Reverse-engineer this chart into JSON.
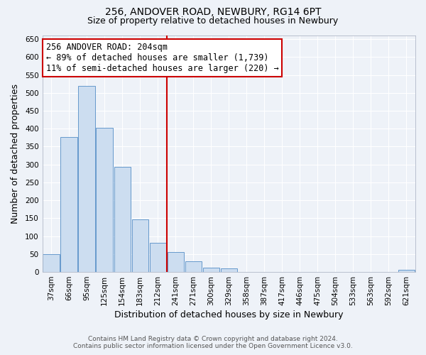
{
  "title": "256, ANDOVER ROAD, NEWBURY, RG14 6PT",
  "subtitle": "Size of property relative to detached houses in Newbury",
  "xlabel": "Distribution of detached houses by size in Newbury",
  "ylabel": "Number of detached properties",
  "bar_labels": [
    "37sqm",
    "66sqm",
    "95sqm",
    "125sqm",
    "154sqm",
    "183sqm",
    "212sqm",
    "241sqm",
    "271sqm",
    "300sqm",
    "329sqm",
    "358sqm",
    "387sqm",
    "417sqm",
    "446sqm",
    "475sqm",
    "504sqm",
    "533sqm",
    "563sqm",
    "592sqm",
    "621sqm"
  ],
  "bar_values": [
    50,
    377,
    519,
    403,
    293,
    146,
    82,
    56,
    30,
    12,
    10,
    0,
    0,
    0,
    0,
    0,
    0,
    0,
    0,
    0,
    7
  ],
  "bar_color": "#ccddf0",
  "bar_edge_color": "#6699cc",
  "vline_x_idx": 6,
  "vline_color": "#cc0000",
  "annotation_line1": "256 ANDOVER ROAD: 204sqm",
  "annotation_line2": "← 89% of detached houses are smaller (1,739)",
  "annotation_line3": "11% of semi-detached houses are larger (220) →",
  "annotation_box_color": "white",
  "annotation_box_edge_color": "#cc0000",
  "ylim": [
    0,
    660
  ],
  "yticks": [
    0,
    50,
    100,
    150,
    200,
    250,
    300,
    350,
    400,
    450,
    500,
    550,
    600,
    650
  ],
  "footer_line1": "Contains HM Land Registry data © Crown copyright and database right 2024.",
  "footer_line2": "Contains public sector information licensed under the Open Government Licence v3.0.",
  "bg_color": "#eef2f8",
  "plot_bg_color": "#eef2f8",
  "grid_color": "#ffffff",
  "title_fontsize": 10,
  "subtitle_fontsize": 9,
  "label_fontsize": 9,
  "tick_fontsize": 7.5,
  "annotation_fontsize": 8.5,
  "footer_fontsize": 6.5
}
